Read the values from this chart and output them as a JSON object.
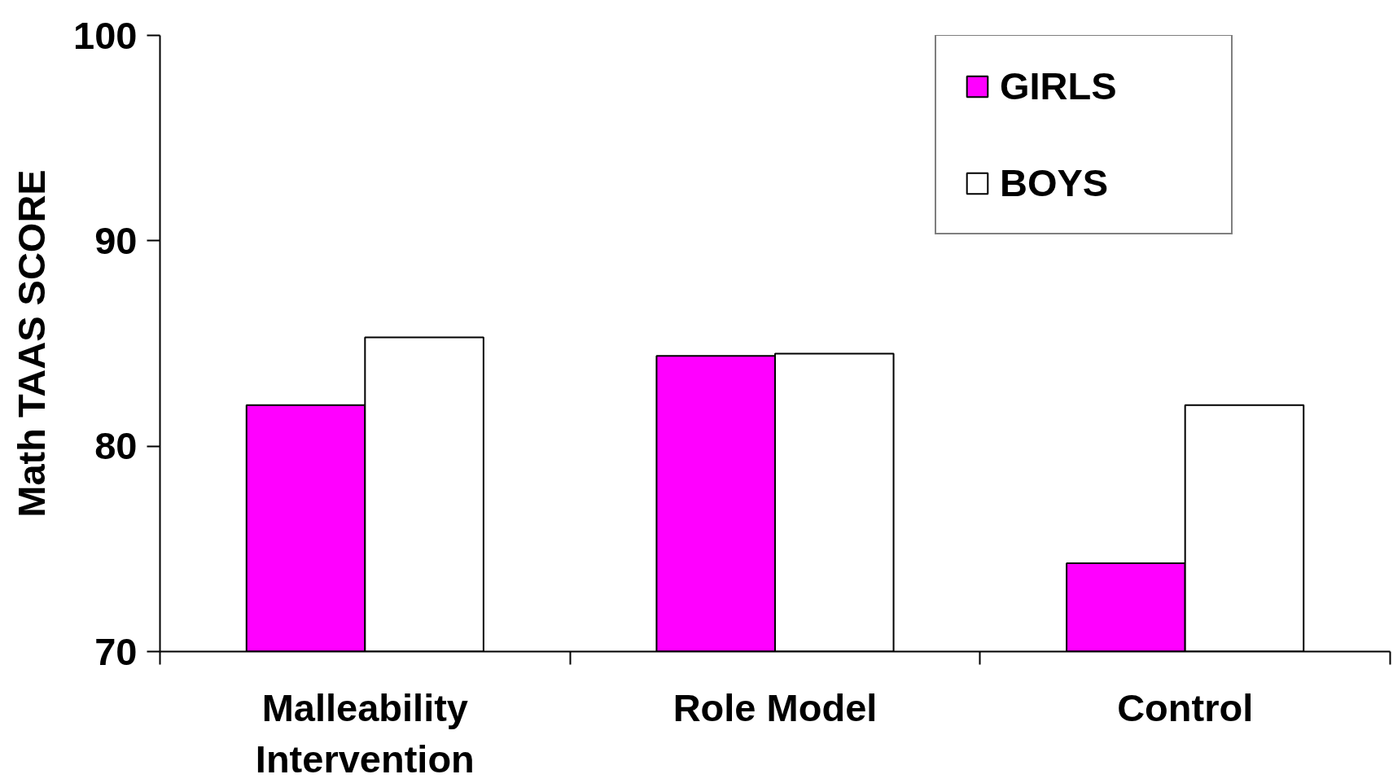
{
  "chart_data": {
    "type": "bar",
    "ylabel": "Math TAAS SCORE",
    "categories": [
      "Malleability\nIntervention",
      "Role Model",
      "Control"
    ],
    "series": [
      {
        "name": "GIRLS",
        "color": "#ff00ff",
        "values": [
          82.0,
          84.4,
          74.3
        ]
      },
      {
        "name": "BOYS",
        "color": "#ffffff",
        "values": [
          85.3,
          84.5,
          82.0
        ]
      }
    ],
    "ylim": [
      70,
      100
    ],
    "yticks": [
      70,
      80,
      90,
      100
    ],
    "legend": "top right",
    "grid": false
  }
}
